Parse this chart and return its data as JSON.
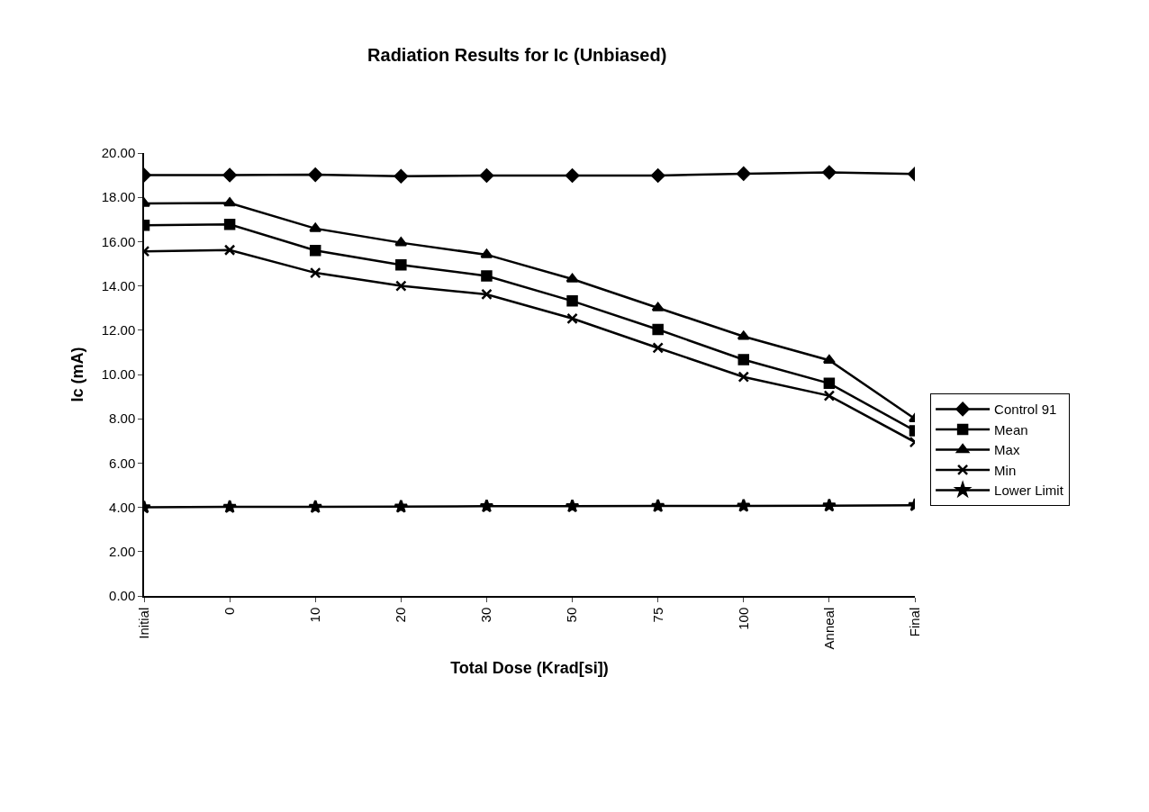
{
  "chart_data": {
    "type": "line",
    "title": "Radiation Results for Ic (Unbiased)",
    "xlabel": "Total Dose (Krad[si])",
    "ylabel": "Ic (mA)",
    "categories": [
      "Initial",
      "0",
      "10",
      "20",
      "30",
      "50",
      "75",
      "100",
      "Anneal",
      "Final"
    ],
    "series": [
      {
        "name": "Control 91",
        "color": "#000000",
        "marker": "diamond",
        "values": [
          19.0,
          19.0,
          19.02,
          18.95,
          18.98,
          18.98,
          18.98,
          19.07,
          19.13,
          19.05
        ]
      },
      {
        "name": "Mean",
        "color": "#000000",
        "marker": "square",
        "values": [
          16.74,
          16.78,
          15.6,
          14.95,
          14.45,
          13.32,
          12.03,
          10.67,
          9.6,
          7.46
        ]
      },
      {
        "name": "Max",
        "color": "#000000",
        "marker": "triangle",
        "values": [
          17.72,
          17.74,
          16.59,
          15.95,
          15.41,
          14.31,
          13.01,
          11.72,
          10.64,
          8.0
        ]
      },
      {
        "name": "Min",
        "color": "#000000",
        "marker": "cross",
        "values": [
          15.56,
          15.62,
          14.59,
          14.0,
          13.62,
          12.53,
          11.2,
          9.89,
          9.04,
          6.95
        ]
      },
      {
        "name": "Lower Limit",
        "color": "#000000",
        "marker": "star",
        "values": [
          4.0,
          4.02,
          4.02,
          4.03,
          4.05,
          4.05,
          4.06,
          4.07,
          4.08,
          4.1
        ]
      }
    ],
    "ylim": [
      0,
      20
    ],
    "yticks": [
      {
        "value": 0,
        "label": "0.00"
      },
      {
        "value": 2,
        "label": "2.00"
      },
      {
        "value": 4,
        "label": "4.00"
      },
      {
        "value": 6,
        "label": "6.00"
      },
      {
        "value": 8,
        "label": "8.00"
      },
      {
        "value": 10,
        "label": "10.00"
      },
      {
        "value": 12,
        "label": "12.00"
      },
      {
        "value": 14,
        "label": "14.00"
      },
      {
        "value": 16,
        "label": "16.00"
      },
      {
        "value": 18,
        "label": "18.00"
      },
      {
        "value": 20,
        "label": "20.00"
      }
    ],
    "grid": false,
    "legend": "right",
    "line_style": "solid"
  }
}
